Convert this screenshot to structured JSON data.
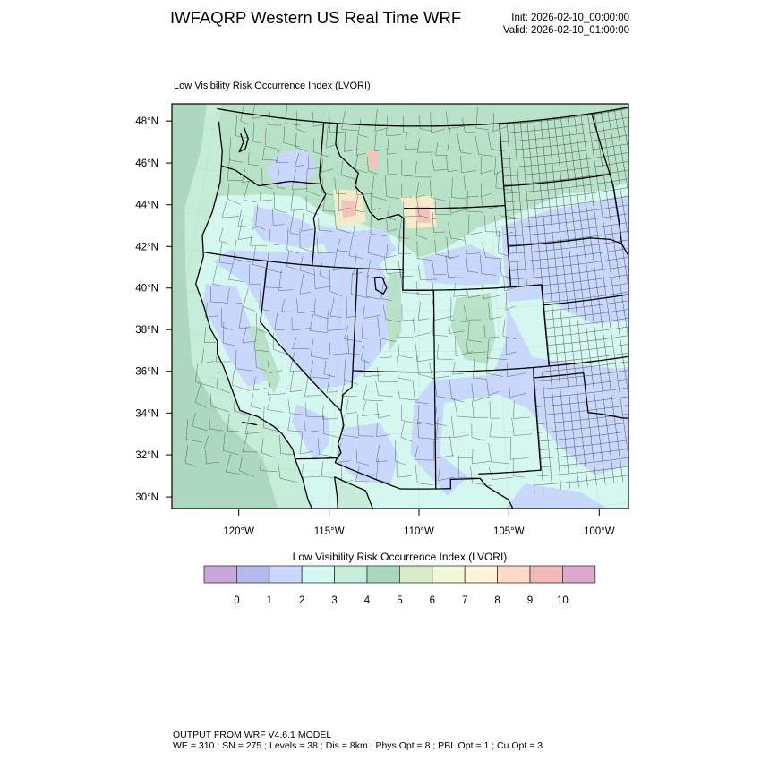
{
  "header": {
    "title": "IWFAQRP Western US Real Time WRF",
    "init": "Init: 2026-02-10_00:00:00",
    "valid": "Valid: 2026-02-10_01:00:00"
  },
  "map": {
    "field_title": "Low Visibility Risk Occurrence Index   (LVORI)",
    "lat_ticks": [
      48,
      46,
      44,
      42,
      40,
      38,
      36,
      34,
      32,
      30
    ],
    "lat_labels": [
      "48°N",
      "46°N",
      "44°N",
      "42°N",
      "40°N",
      "38°N",
      "36°N",
      "34°N",
      "32°N",
      "30°N"
    ],
    "lon_ticks": [
      -120,
      -115,
      -110,
      -105,
      -100
    ],
    "lon_labels": [
      "120°W",
      "115°W",
      "110°W",
      "105°W",
      "100°W"
    ],
    "colors": {
      "ocean_near": "#c4ecd8",
      "ocean_far": "#acd8c0",
      "land_base": "#d4f8f0",
      "land_blue": "#c8d8fc",
      "land_green": "#b8e2c8",
      "land_yellow": "#f2ecc8",
      "land_red": "#f4c4bc"
    }
  },
  "colorbar": {
    "title": "Low Visibility Risk Occurrence Index  (LVORI)",
    "colors": [
      "#c8a8dc",
      "#b4b8ec",
      "#c8d8fc",
      "#d2f8f0",
      "#c4ecd8",
      "#a8d8c0",
      "#d8ecc8",
      "#f0f8d8",
      "#fff4d8",
      "#fcd8c8",
      "#f0b8b8",
      "#dca8cc"
    ],
    "labels": [
      "0",
      "1",
      "2",
      "3",
      "4",
      "5",
      "6",
      "7",
      "8",
      "9",
      "10"
    ]
  },
  "footer": {
    "line1": "OUTPUT FROM WRF V4.6.1 MODEL",
    "line2": "WE = 310 ; SN = 275 ; Levels = 38 ; Dis = 8km ; Phys Opt = 8 ; PBL Opt = 1 ; Cu Opt = 3"
  }
}
